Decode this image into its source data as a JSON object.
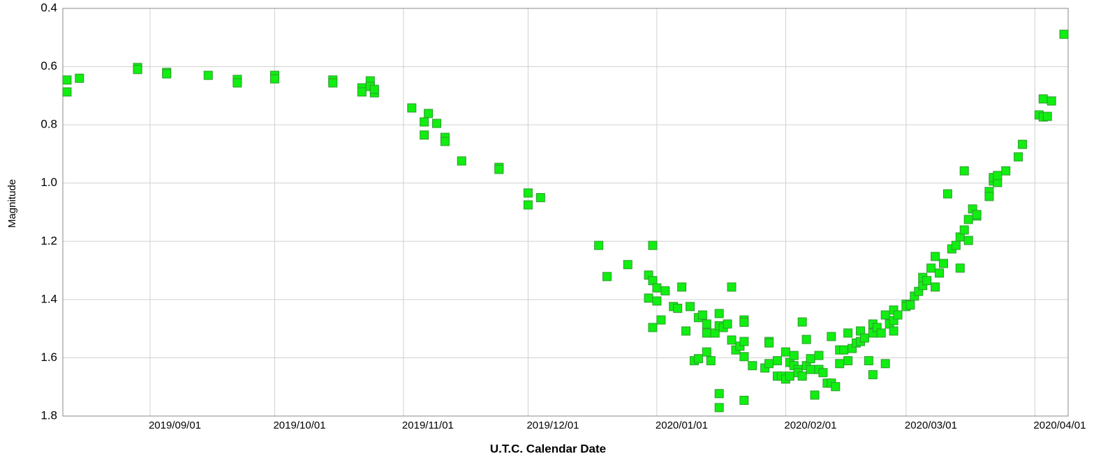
{
  "chart_data": {
    "type": "scatter",
    "x_label": "U.T.C. Calendar Date",
    "y_label": "Magnitude",
    "invert_y": true,
    "grid": true,
    "marker": "square",
    "color": "#11ee11",
    "xlim": [
      "2019/08/11",
      "2020/04/09"
    ],
    "xticks": [
      "2019/09/01",
      "2019/10/01",
      "2019/11/01",
      "2019/12/01",
      "2020/01/01",
      "2020/02/01",
      "2020/03/01",
      "2020/04/01"
    ],
    "ylim": [
      0.4,
      1.8
    ],
    "yticks": [
      0.4,
      0.6,
      0.8,
      {
        "value": 1,
        "label": "1.0"
      },
      1.2,
      1.4,
      1.6,
      1.8
    ],
    "x": [
      "2019/08/12",
      "2019/08/12",
      "2019/08/15",
      "2019/08/29",
      "2019/08/29",
      "2019/09/05",
      "2019/09/05",
      "2019/09/15",
      "2019/09/22",
      "2019/09/22",
      "2019/10/01",
      "2019/10/01",
      "2019/10/15",
      "2019/10/15",
      "2019/10/22",
      "2019/10/22",
      "2019/10/24",
      "2019/10/24",
      "2019/10/25",
      "2019/10/25",
      "2019/11/03",
      "2019/11/06",
      "2019/11/06",
      "2019/11/07",
      "2019/11/09",
      "2019/11/11",
      "2019/11/11",
      "2019/11/15",
      "2019/11/24",
      "2019/11/24",
      "2019/12/01",
      "2019/12/01",
      "2019/12/04",
      "2019/12/18",
      "2019/12/20",
      "2019/12/25",
      "2019/12/30",
      "2019/12/30",
      "2019/12/31",
      "2019/12/31",
      "2019/12/31",
      "2020/01/01",
      "2020/01/01",
      "2020/01/02",
      "2020/01/03",
      "2020/01/05",
      "2020/01/06",
      "2020/01/07",
      "2020/01/08",
      "2020/01/09",
      "2020/01/10",
      "2020/01/11",
      "2020/01/11",
      "2020/01/12",
      "2020/01/13",
      "2020/01/13",
      "2020/01/13",
      "2020/01/14",
      "2020/01/15",
      "2020/01/16",
      "2020/01/16",
      "2020/01/16",
      "2020/01/16",
      "2020/01/17",
      "2020/01/18",
      "2020/01/19",
      "2020/01/19",
      "2020/01/20",
      "2020/01/21",
      "2020/01/22",
      "2020/01/22",
      "2020/01/22",
      "2020/01/22",
      "2020/01/22",
      "2020/01/24",
      "2020/01/27",
      "2020/01/28",
      "2020/01/28",
      "2020/01/28",
      "2020/01/30",
      "2020/01/30",
      "2020/01/31",
      "2020/02/01",
      "2020/02/01",
      "2020/02/02",
      "2020/02/02",
      "2020/02/03",
      "2020/02/03",
      "2020/02/04",
      "2020/02/04",
      "2020/02/05",
      "2020/02/05",
      "2020/02/06",
      "2020/02/06",
      "2020/02/07",
      "2020/02/07",
      "2020/02/08",
      "2020/02/09",
      "2020/02/09",
      "2020/02/10",
      "2020/02/11",
      "2020/02/12",
      "2020/02/12",
      "2020/02/13",
      "2020/02/14",
      "2020/02/14",
      "2020/02/15",
      "2020/02/16",
      "2020/02/16",
      "2020/02/17",
      "2020/02/18",
      "2020/02/19",
      "2020/02/19",
      "2020/02/20",
      "2020/02/21",
      "2020/02/22",
      "2020/02/22",
      "2020/02/22",
      "2020/02/23",
      "2020/02/24",
      "2020/02/25",
      "2020/02/25",
      "2020/02/26",
      "2020/02/27",
      "2020/02/27",
      "2020/02/27",
      "2020/02/28",
      "2020/03/01",
      "2020/03/01",
      "2020/03/02",
      "2020/03/03",
      "2020/03/04",
      "2020/03/05",
      "2020/03/05",
      "2020/03/06",
      "2020/03/07",
      "2020/03/08",
      "2020/03/08",
      "2020/03/09",
      "2020/03/10",
      "2020/03/11",
      "2020/03/12",
      "2020/03/13",
      "2020/03/14",
      "2020/03/14",
      "2020/03/15",
      "2020/03/15",
      "2020/03/16",
      "2020/03/16",
      "2020/03/17",
      "2020/03/18",
      "2020/03/18",
      "2020/03/21",
      "2020/03/21",
      "2020/03/22",
      "2020/03/22",
      "2020/03/23",
      "2020/03/23",
      "2020/03/25",
      "2020/03/28",
      "2020/03/29",
      "2020/04/02",
      "2020/04/03",
      "2020/04/03",
      "2020/04/04",
      "2020/04/05",
      "2020/04/08"
    ],
    "values": [
      0.646,
      0.687,
      0.64,
      0.603,
      0.61,
      0.62,
      0.625,
      0.63,
      0.644,
      0.656,
      0.63,
      0.642,
      0.646,
      0.656,
      0.673,
      0.687,
      0.649,
      0.668,
      0.69,
      0.678,
      0.742,
      0.79,
      0.835,
      0.761,
      0.795,
      0.843,
      0.857,
      0.924,
      0.946,
      0.953,
      1.034,
      1.075,
      1.05,
      1.214,
      1.321,
      1.28,
      1.316,
      1.395,
      1.496,
      1.214,
      1.335,
      1.36,
      1.405,
      1.47,
      1.37,
      1.424,
      1.43,
      1.357,
      1.508,
      1.424,
      1.61,
      1.603,
      1.462,
      1.453,
      1.515,
      1.58,
      1.484,
      1.61,
      1.515,
      1.49,
      1.771,
      1.723,
      1.448,
      1.496,
      1.484,
      1.357,
      1.539,
      1.573,
      1.56,
      1.47,
      1.478,
      1.544,
      1.746,
      1.596,
      1.627,
      1.635,
      1.544,
      1.62,
      1.549,
      1.663,
      1.61,
      1.663,
      1.58,
      1.673,
      1.616,
      1.663,
      1.627,
      1.592,
      1.64,
      1.651,
      1.477,
      1.663,
      1.537,
      1.627,
      1.64,
      1.603,
      1.728,
      1.592,
      1.64,
      1.651,
      1.687,
      1.527,
      1.687,
      1.699,
      1.573,
      1.62,
      1.573,
      1.61,
      1.515,
      1.568,
      1.549,
      1.508,
      1.544,
      1.532,
      1.61,
      1.484,
      1.658,
      1.515,
      1.496,
      1.515,
      1.62,
      1.453,
      1.484,
      1.508,
      1.436,
      1.472,
      1.453,
      1.416,
      1.424,
      1.419,
      1.388,
      1.372,
      1.352,
      1.324,
      1.335,
      1.292,
      1.357,
      1.252,
      1.309,
      1.276,
      1.037,
      1.226,
      1.214,
      1.292,
      1.185,
      0.958,
      1.161,
      1.197,
      1.125,
      1.089,
      1.113,
      1.108,
      1.029,
      1.046,
      0.993,
      0.981,
      0.998,
      0.974,
      0.958,
      0.91,
      0.867,
      0.766,
      0.773,
      0.711,
      0.771,
      0.718,
      0.489
    ]
  }
}
